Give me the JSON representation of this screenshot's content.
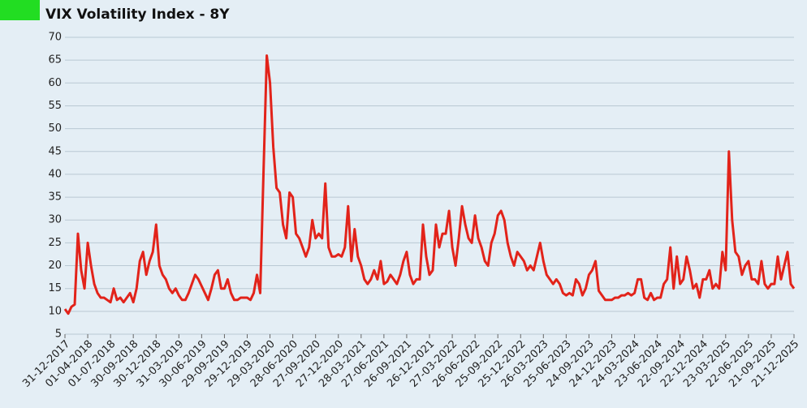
{
  "chart_data": {
    "type": "line",
    "title": "VIX Volatility Index - 8Y",
    "categories": [
      "31-12-2017",
      null,
      null,
      null,
      null,
      null,
      null,
      "01-04-2018",
      null,
      null,
      null,
      null,
      null,
      null,
      "01-07-2018",
      null,
      null,
      null,
      null,
      null,
      null,
      "30-09-2018",
      null,
      null,
      null,
      null,
      null,
      null,
      "30-12-2018",
      null,
      null,
      null,
      null,
      null,
      null,
      "31-03-2019",
      null,
      null,
      null,
      null,
      null,
      null,
      "30-06-2019",
      null,
      null,
      null,
      null,
      null,
      null,
      "29-09-2019",
      null,
      null,
      null,
      null,
      null,
      null,
      "29-12-2019",
      null,
      null,
      null,
      null,
      null,
      null,
      "29-03-2020",
      null,
      null,
      null,
      null,
      null,
      null,
      "28-06-2020",
      null,
      null,
      null,
      null,
      null,
      null,
      "27-09-2020",
      null,
      null,
      null,
      null,
      null,
      null,
      "27-12-2020",
      null,
      null,
      null,
      null,
      null,
      null,
      "28-03-2021",
      null,
      null,
      null,
      null,
      null,
      null,
      "27-06-2021",
      null,
      null,
      null,
      null,
      null,
      null,
      "26-09-2021",
      null,
      null,
      null,
      null,
      null,
      null,
      "26-12-2021",
      null,
      null,
      null,
      null,
      null,
      null,
      "27-03-2022",
      null,
      null,
      null,
      null,
      null,
      null,
      "26-06-2022",
      null,
      null,
      null,
      null,
      null,
      null,
      "25-09-2022",
      null,
      null,
      null,
      null,
      null,
      null,
      "25-12-2022",
      null,
      null,
      null,
      null,
      null,
      null,
      "26-03-2023",
      null,
      null,
      null,
      null,
      null,
      null,
      "25-06-2023",
      null,
      null,
      null,
      null,
      null,
      null,
      "24-09-2023",
      null,
      null,
      null,
      null,
      null,
      null,
      "24-12-2023",
      null,
      null,
      null,
      null,
      null,
      null,
      "24-03-2024",
      null,
      null,
      null,
      null,
      null,
      null,
      "23-06-2024",
      null,
      null,
      null,
      null,
      null,
      null,
      "22-09-2024",
      null,
      null,
      null,
      null,
      null,
      null,
      "22-12-2024",
      null,
      null,
      null,
      null,
      null,
      null,
      "23-03-2025",
      null,
      null,
      null,
      null,
      null,
      null,
      "22-06-2025",
      null,
      null,
      null,
      null,
      null,
      null,
      "21-09-2025",
      null,
      null,
      null,
      null,
      null,
      null,
      "21-12-2025"
    ],
    "series": [
      {
        "name": "VIX",
        "color": "#e2231a",
        "values": [
          10.5,
          9.5,
          11,
          11.5,
          27,
          19,
          15,
          25,
          20,
          16,
          14,
          13,
          13,
          12.5,
          12,
          15,
          12.5,
          13,
          12,
          13,
          14,
          12,
          15,
          21,
          23,
          18,
          21,
          23,
          29,
          20,
          18,
          17,
          15,
          14,
          15,
          13.5,
          12.5,
          12.5,
          14,
          16,
          18,
          17,
          15.5,
          14,
          12.5,
          15,
          18,
          19,
          15,
          15,
          17,
          14,
          12.5,
          12.5,
          13,
          13,
          13,
          12.5,
          14,
          18,
          14,
          40,
          66,
          60,
          46,
          37,
          36,
          29,
          26,
          36,
          35,
          27,
          26,
          24,
          22,
          24,
          30,
          26,
          27,
          26,
          38,
          24,
          22,
          22,
          22.5,
          22,
          24,
          33,
          21,
          28,
          22,
          20,
          17,
          16,
          17,
          19,
          17,
          21,
          16,
          16.5,
          18,
          17,
          16,
          18,
          21,
          23,
          18,
          16,
          17,
          17,
          29,
          22,
          18,
          19,
          29,
          24,
          27,
          27,
          32,
          24,
          20,
          26,
          33,
          29,
          26,
          25,
          31,
          26,
          24,
          21,
          20,
          25,
          27,
          31,
          32,
          30,
          25,
          22,
          20,
          23,
          22,
          21,
          19,
          20,
          19,
          22,
          25,
          21,
          18,
          17,
          16,
          17,
          16,
          14,
          13.5,
          14,
          13.5,
          17,
          16,
          13.5,
          15,
          18,
          19,
          21,
          14.5,
          13.5,
          12.5,
          12.5,
          12.5,
          13,
          13,
          13.5,
          13.5,
          14,
          13.5,
          14,
          17,
          17,
          13,
          12.5,
          14,
          12.5,
          13,
          13,
          16,
          17,
          24,
          15,
          22,
          16,
          17,
          22,
          19,
          15,
          16,
          13,
          17,
          17,
          19,
          15,
          16,
          15,
          23,
          19,
          45,
          30,
          23,
          22,
          18,
          20,
          21,
          17,
          17,
          16,
          21,
          16,
          15,
          16,
          16,
          22,
          17,
          20,
          23,
          16,
          15
        ]
      }
    ],
    "ylim": [
      5,
      70
    ],
    "yticks": [
      5,
      10,
      15,
      20,
      25,
      30,
      35,
      40,
      45,
      50,
      55,
      60,
      65,
      70
    ],
    "grid": true
  }
}
